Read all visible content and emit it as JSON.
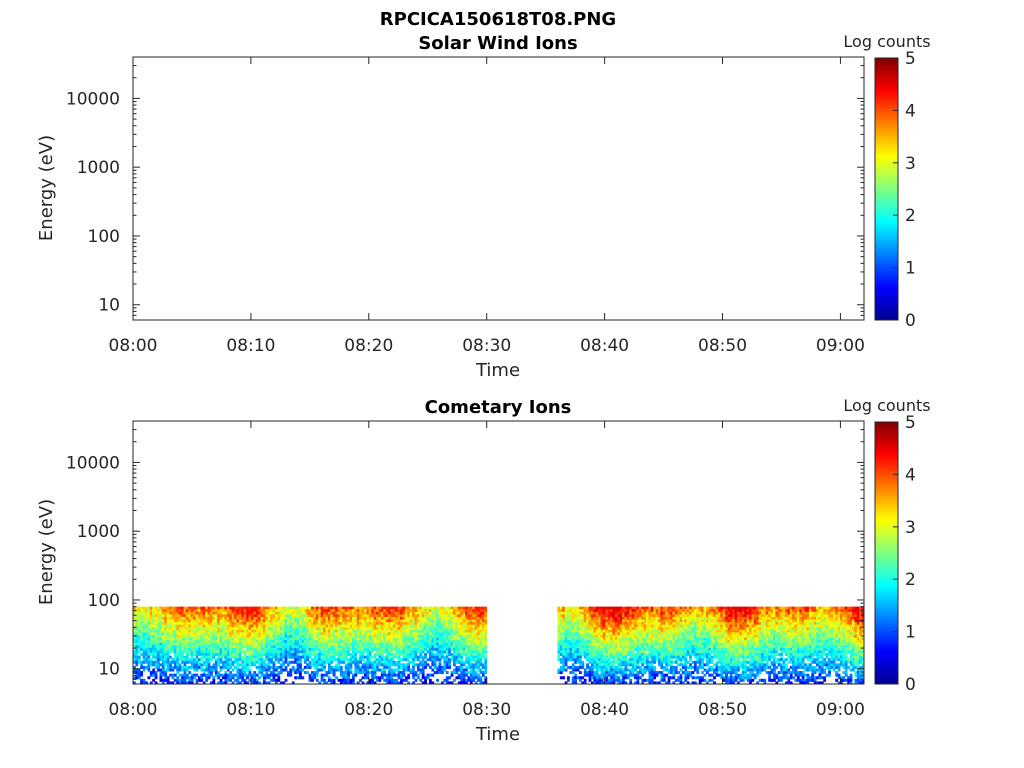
{
  "figure": {
    "title": "RPCICA150618T08.PNG"
  },
  "colors": {
    "colormap": "jet",
    "axes": "#262626",
    "background": "#ffffff"
  },
  "chart_data": [
    {
      "type": "heatmap",
      "title": "Solar Wind Ions",
      "xlabel": "Time",
      "ylabel": "Energy (eV)",
      "y_scale": "log",
      "ylim": [
        6,
        40000
      ],
      "xlim": [
        "08:00",
        "09:02"
      ],
      "x_ticks": [
        "08:00",
        "08:10",
        "08:20",
        "08:30",
        "08:40",
        "08:50",
        "09:00"
      ],
      "y_ticks": [
        "10",
        "100",
        "1000",
        "10000"
      ],
      "colorbar": {
        "label": "Log counts",
        "min": 0,
        "max": 5,
        "ticks": [
          "0",
          "1",
          "2",
          "3",
          "4",
          "5"
        ]
      },
      "grid": false,
      "data_segments": []
    },
    {
      "type": "heatmap",
      "title": "Cometary Ions",
      "xlabel": "Time",
      "ylabel": "Energy (eV)",
      "y_scale": "log",
      "ylim": [
        6,
        40000
      ],
      "xlim": [
        "08:00",
        "09:02"
      ],
      "x_ticks": [
        "08:00",
        "08:10",
        "08:20",
        "08:30",
        "08:40",
        "08:50",
        "09:00"
      ],
      "y_ticks": [
        "10",
        "100",
        "1000",
        "10000"
      ],
      "colorbar": {
        "label": "Log counts",
        "min": 0,
        "max": 5,
        "ticks": [
          "0",
          "1",
          "2",
          "3",
          "4",
          "5"
        ]
      },
      "grid": false,
      "energy_range_eV": [
        6,
        80
      ],
      "data_segments": [
        {
          "start": "08:00",
          "end": "08:30",
          "peak_log_counts": 4.3
        },
        {
          "start": "08:36",
          "end": "09:02",
          "peak_log_counts": 4.5
        }
      ]
    }
  ]
}
